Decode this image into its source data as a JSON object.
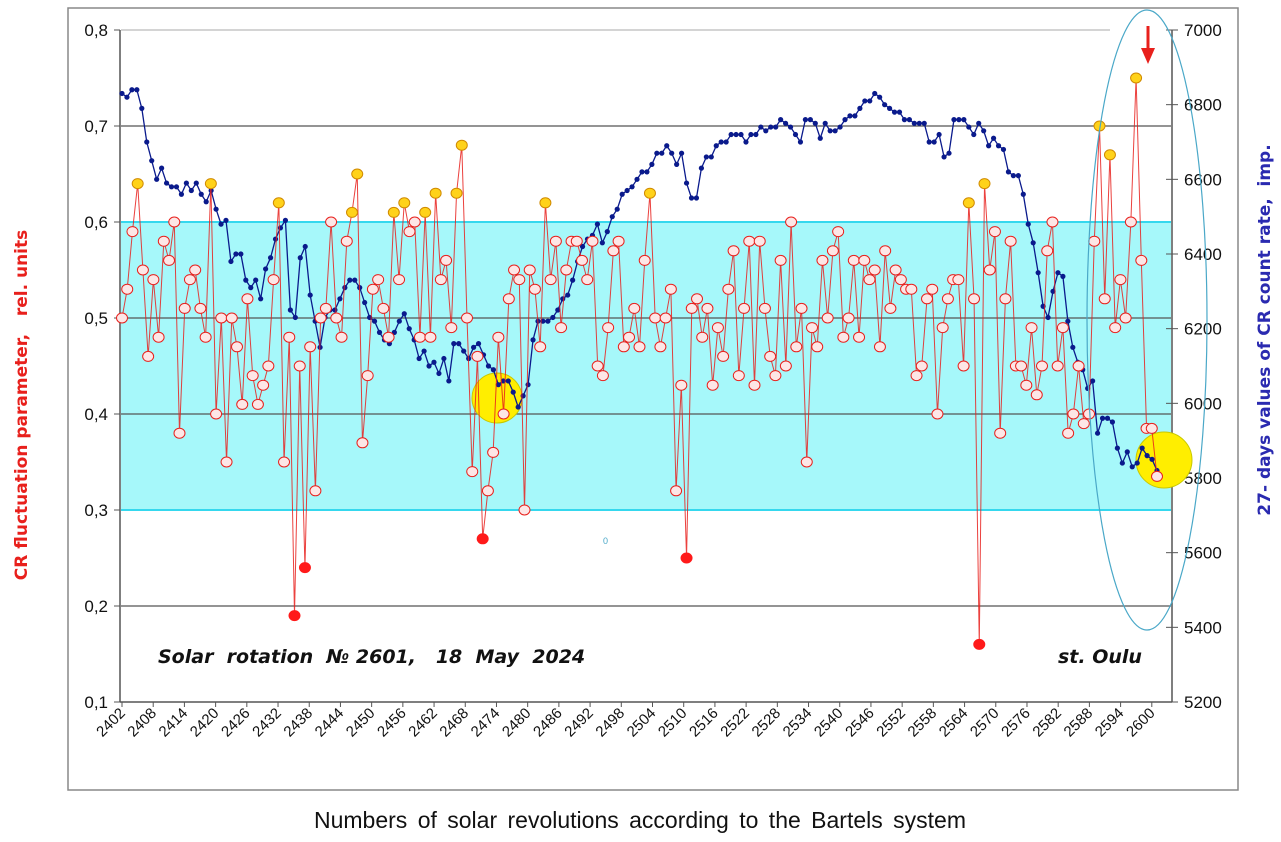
{
  "chart_data": {
    "type": "line",
    "title": "",
    "xlabel": "Numbers of solar revolutions according to the Bartels system",
    "ylabel_left": "CR fluctuation parameter,   rel. units",
    "ylabel_right": "27- days values of CR count rate,  imp.",
    "x_range": [
      2402,
      2601
    ],
    "x_ticks": [
      2402,
      2408,
      2414,
      2420,
      2426,
      2432,
      2438,
      2444,
      2450,
      2456,
      2462,
      2468,
      2474,
      2480,
      2486,
      2492,
      2498,
      2504,
      2510,
      2516,
      2522,
      2528,
      2534,
      2540,
      2546,
      2552,
      2558,
      2564,
      2570,
      2576,
      2582,
      2588,
      2594,
      2600
    ],
    "ylim_left": [
      0.1,
      0.8
    ],
    "yticks_left": [
      "0,1",
      "0,2",
      "0,3",
      "0,4",
      "0,5",
      "0,6",
      "0,7",
      "0,8"
    ],
    "ylim_right": [
      5200,
      7000
    ],
    "yticks_right": [
      "5200",
      "5400",
      "5600",
      "5800",
      "6000",
      "6200",
      "6400",
      "6600",
      "6800",
      "7000"
    ],
    "band": [
      0.3,
      0.6
    ],
    "grid": true,
    "series": [
      {
        "name": "CR fluctuation parameter",
        "axis": "left",
        "color": "#e8201c",
        "values": [
          0.5,
          0.53,
          0.59,
          0.64,
          0.55,
          0.46,
          0.54,
          0.48,
          0.58,
          0.56,
          0.6,
          0.38,
          0.51,
          0.54,
          0.55,
          0.51,
          0.48,
          0.64,
          0.4,
          0.5,
          0.35,
          0.5,
          0.47,
          0.41,
          0.52,
          0.44,
          0.41,
          0.43,
          0.45,
          0.54,
          0.62,
          0.35,
          0.48,
          0.19,
          0.45,
          0.24,
          0.47,
          0.32,
          0.5,
          0.51,
          0.6,
          0.5,
          0.48,
          0.58,
          0.61,
          0.65,
          0.37,
          0.44,
          0.53,
          0.54,
          0.51,
          0.48,
          0.61,
          0.54,
          0.62,
          0.59,
          0.6,
          0.48,
          0.61,
          0.48,
          0.63,
          0.54,
          0.56,
          0.49,
          0.63,
          0.68,
          0.5,
          0.34,
          0.46,
          0.27,
          0.32,
          0.36,
          0.48,
          0.4,
          0.52,
          0.55,
          0.54,
          0.3,
          0.55,
          0.53,
          0.47,
          0.62,
          0.54,
          0.58,
          0.49,
          0.55,
          0.58,
          0.58,
          0.56,
          0.54,
          0.58,
          0.45,
          0.44,
          0.49,
          0.57,
          0.58,
          0.47,
          0.48,
          0.51,
          0.47,
          0.56,
          0.63,
          0.5,
          0.47,
          0.5,
          0.53,
          0.32,
          0.43,
          0.25,
          0.51,
          0.52,
          0.48,
          0.51,
          0.43,
          0.49,
          0.46,
          0.53,
          0.57,
          0.44,
          0.51,
          0.58,
          0.43,
          0.58,
          0.51,
          0.46,
          0.44,
          0.56,
          0.45,
          0.6,
          0.47,
          0.51,
          0.35,
          0.49,
          0.47,
          0.56,
          0.5,
          0.57,
          0.59,
          0.48,
          0.5,
          0.56,
          0.48,
          0.56,
          0.54,
          0.55,
          0.47,
          0.57,
          0.51,
          0.55,
          0.54,
          0.53,
          0.53,
          0.44,
          0.45,
          0.52,
          0.53,
          0.4,
          0.49,
          0.52,
          0.54,
          0.54,
          0.45,
          0.62,
          0.52,
          0.16,
          0.64,
          0.55,
          0.59,
          0.38,
          0.52,
          0.58,
          0.45,
          0.45,
          0.43,
          0.49,
          0.42,
          0.45,
          0.57,
          0.6,
          0.45,
          0.49,
          0.38,
          0.4,
          0.45,
          0.39,
          0.4,
          0.58,
          0.7,
          0.52,
          0.67,
          0.49,
          0.54,
          0.5,
          0.6,
          0.75,
          0.56,
          0.385,
          0.385,
          0.335
        ]
      },
      {
        "name": "27-days CR count rate",
        "axis": "right",
        "color": "#0a1a8c",
        "values": [
          6830,
          6820,
          6840,
          6840,
          6790,
          6700,
          6650,
          6600,
          6630,
          6590,
          6580,
          6580,
          6560,
          6590,
          6570,
          6590,
          6560,
          6540,
          6570,
          6520,
          6480,
          6490,
          6380,
          6400,
          6400,
          6330,
          6310,
          6330,
          6280,
          6360,
          6390,
          6440,
          6470,
          6490,
          6250,
          6230,
          6390,
          6420,
          6290,
          6220,
          6150,
          6230,
          6250,
          6250,
          6280,
          6310,
          6330,
          6330,
          6310,
          6270,
          6230,
          6220,
          6190,
          6170,
          6160,
          6190,
          6220,
          6240,
          6200,
          6170,
          6120,
          6140,
          6100,
          6110,
          6080,
          6120,
          6060,
          6160,
          6160,
          6140,
          6120,
          6150,
          6160,
          6130,
          6100,
          6090,
          6050,
          6060,
          6060,
          6030,
          5990,
          6020,
          6050,
          6170,
          6220,
          6220,
          6220,
          6230,
          6250,
          6280,
          6290,
          6330,
          6380,
          6420,
          6440,
          6450,
          6480,
          6430,
          6460,
          6500,
          6520,
          6560,
          6570,
          6580,
          6600,
          6620,
          6620,
          6640,
          6670,
          6670,
          6690,
          6670,
          6640,
          6670,
          6590,
          6550,
          6550,
          6630,
          6660,
          6660,
          6690,
          6700,
          6700,
          6720,
          6720,
          6720,
          6700,
          6720,
          6720,
          6740,
          6730,
          6740,
          6740,
          6760,
          6750,
          6740,
          6720,
          6700,
          6760,
          6760,
          6750,
          6710,
          6750,
          6730,
          6730,
          6740,
          6760,
          6770,
          6770,
          6790,
          6810,
          6810,
          6830,
          6820,
          6800,
          6790,
          6780,
          6780,
          6760,
          6760,
          6750,
          6750,
          6750,
          6700,
          6700,
          6720,
          6660,
          6670,
          6760,
          6760,
          6760,
          6740,
          6720,
          6750,
          6730,
          6690,
          6710,
          6690,
          6680,
          6620,
          6610,
          6610,
          6560,
          6480,
          6430,
          6350,
          6260,
          6230,
          6300,
          6350,
          6340,
          6220,
          6150,
          6110,
          6090,
          6040,
          6060,
          5920,
          5960,
          5960,
          5950,
          5880,
          5840,
          5870,
          5830,
          5840,
          5880,
          5860,
          5850,
          5820
        ]
      }
    ],
    "annotations": [
      "Solar  rotation  № 2601,   18  May  2024",
      "st. Oulu",
      "0"
    ],
    "marker_colors": {
      "high": "#ffd21a",
      "low": "#ff1a1a",
      "normal": "#fde6e6",
      "band": "#a6f8fa",
      "band_edge": "#35d8ee"
    }
  }
}
